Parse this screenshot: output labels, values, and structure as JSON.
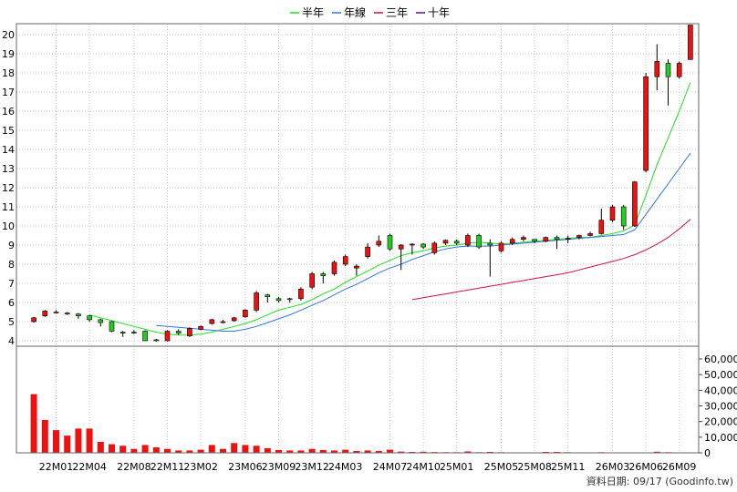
{
  "chart_data": {
    "type": "candlestick",
    "legend": [
      {
        "name": "半年",
        "color": "#22dd22"
      },
      {
        "name": "年線",
        "color": "#3377dd"
      },
      {
        "name": "三年",
        "color": "#cc1144"
      },
      {
        "name": "十年",
        "color": "#551199"
      }
    ],
    "legend_position": "top-center",
    "grid": true,
    "price_axis": {
      "min": 4,
      "max": 20,
      "ticks": [
        "4",
        "5",
        "6",
        "7",
        "8",
        "9",
        "10",
        "11",
        "12",
        "13",
        "14",
        "15",
        "16",
        "17",
        "18",
        "19",
        "20"
      ]
    },
    "volume_axis": {
      "min": 0,
      "max": 60000,
      "ticks": [
        "0",
        "10,000",
        "20,000",
        "30,000",
        "40,000",
        "50,000",
        "60,000"
      ]
    },
    "x_tick_labels": [
      {
        "label": "22M01",
        "index": 2
      },
      {
        "label": "22M04",
        "index": 5
      },
      {
        "label": "22M08",
        "index": 9
      },
      {
        "label": "22M11",
        "index": 12
      },
      {
        "label": "23M02",
        "index": 15
      },
      {
        "label": "23M06",
        "index": 19
      },
      {
        "label": "23M09",
        "index": 22
      },
      {
        "label": "23M12",
        "index": 25
      },
      {
        "label": "24M03",
        "index": 28
      },
      {
        "label": "24M07",
        "index": 32
      },
      {
        "label": "24M10",
        "index": 35
      },
      {
        "label": "25M01",
        "index": 38
      },
      {
        "label": "25M05",
        "index": 42
      },
      {
        "label": "25M08",
        "index": 45
      },
      {
        "label": "25M11",
        "index": 48
      },
      {
        "label": "26M03",
        "index": 52
      },
      {
        "label": "26M06",
        "index": 55
      },
      {
        "label": "26M09",
        "index": 58
      }
    ],
    "candles": [
      [
        5.0,
        5.2,
        4.95,
        5.25
      ],
      [
        5.3,
        5.55,
        5.25,
        5.6
      ],
      [
        5.5,
        5.5,
        5.45,
        5.6
      ],
      [
        5.45,
        5.4,
        5.35,
        5.5
      ],
      [
        5.4,
        5.3,
        5.15,
        5.45
      ],
      [
        5.3,
        5.1,
        5.0,
        5.35
      ],
      [
        5.1,
        4.95,
        4.75,
        5.15
      ],
      [
        5.0,
        4.5,
        4.45,
        5.05
      ],
      [
        4.45,
        4.4,
        4.2,
        4.5
      ],
      [
        4.45,
        4.42,
        4.35,
        4.55
      ],
      [
        4.5,
        4.0,
        4.0,
        4.55
      ],
      [
        4.05,
        4.0,
        3.95,
        4.1
      ],
      [
        4.0,
        4.5,
        3.95,
        4.55
      ],
      [
        4.5,
        4.4,
        4.3,
        4.6
      ],
      [
        4.25,
        4.65,
        4.2,
        4.7
      ],
      [
        4.6,
        4.75,
        4.55,
        4.8
      ],
      [
        4.9,
        5.1,
        4.85,
        5.15
      ],
      [
        4.95,
        5.0,
        4.9,
        5.1
      ],
      [
        5.05,
        5.2,
        5.0,
        5.25
      ],
      [
        5.25,
        5.6,
        5.2,
        5.65
      ],
      [
        5.6,
        6.5,
        5.5,
        6.6
      ],
      [
        6.4,
        6.3,
        6.0,
        6.45
      ],
      [
        6.2,
        6.1,
        6.0,
        6.3
      ],
      [
        6.2,
        6.15,
        6.0,
        6.25
      ],
      [
        6.2,
        6.7,
        6.1,
        6.8
      ],
      [
        6.8,
        7.5,
        6.7,
        7.6
      ],
      [
        7.5,
        7.4,
        7.0,
        7.6
      ],
      [
        7.5,
        8.1,
        7.4,
        8.2
      ],
      [
        8.0,
        8.4,
        7.9,
        8.5
      ],
      [
        7.8,
        7.9,
        7.4,
        8.0
      ],
      [
        8.4,
        8.9,
        8.3,
        9.1
      ],
      [
        9.0,
        9.2,
        8.9,
        9.5
      ],
      [
        9.5,
        8.8,
        8.7,
        9.6
      ],
      [
        8.8,
        9.0,
        7.7,
        9.05
      ],
      [
        9.0,
        9.05,
        8.5,
        9.1
      ],
      [
        9.05,
        8.9,
        8.8,
        9.1
      ],
      [
        8.6,
        9.1,
        8.5,
        9.2
      ],
      [
        9.1,
        9.25,
        9.0,
        9.3
      ],
      [
        9.2,
        9.1,
        9.0,
        9.3
      ],
      [
        9.0,
        9.5,
        8.9,
        9.6
      ],
      [
        9.5,
        8.9,
        8.8,
        9.6
      ],
      [
        9.1,
        9.0,
        7.35,
        9.3
      ],
      [
        8.7,
        9.1,
        8.6,
        9.2
      ],
      [
        9.1,
        9.3,
        9.0,
        9.4
      ],
      [
        9.3,
        9.4,
        9.2,
        9.5
      ],
      [
        9.3,
        9.2,
        9.1,
        9.3
      ],
      [
        9.2,
        9.4,
        9.15,
        9.45
      ],
      [
        9.4,
        9.3,
        8.8,
        9.5
      ],
      [
        9.3,
        9.35,
        9.1,
        9.5
      ],
      [
        9.4,
        9.5,
        9.3,
        9.55
      ],
      [
        9.5,
        9.6,
        9.45,
        9.7
      ],
      [
        9.6,
        10.3,
        9.55,
        10.9
      ],
      [
        10.3,
        11.0,
        10.2,
        11.1
      ],
      [
        11.0,
        10.0,
        9.8,
        11.1
      ],
      [
        10.0,
        12.3,
        9.95,
        12.35
      ],
      [
        12.9,
        17.8,
        12.8,
        18.0
      ],
      [
        17.8,
        18.6,
        17.1,
        19.5
      ],
      [
        18.5,
        17.8,
        16.3,
        18.7
      ],
      [
        17.8,
        18.5,
        17.7,
        18.6
      ],
      [
        18.7,
        20.5,
        18.7,
        20.5
      ]
    ],
    "volume": [
      37500,
      21000,
      14500,
      11000,
      15500,
      15500,
      7000,
      5500,
      4500,
      2500,
      5000,
      3500,
      2500,
      1500,
      1500,
      2000,
      5000,
      2500,
      6200,
      5000,
      4500,
      3000,
      1800,
      1500,
      1500,
      2500,
      1800,
      1500,
      2000,
      1200,
      1500,
      1200,
      2000,
      800,
      600,
      700,
      500,
      400,
      400,
      900,
      400,
      600,
      400,
      300,
      300,
      300,
      600,
      600,
      400,
      300,
      300,
      400,
      300,
      300,
      300,
      300,
      700,
      400,
      300,
      300
    ],
    "ma_half": [
      null,
      null,
      null,
      null,
      null,
      5.35,
      5.2,
      5.05,
      4.9,
      4.75,
      4.6,
      4.45,
      4.35,
      4.3,
      4.3,
      4.35,
      4.45,
      4.6,
      4.75,
      4.9,
      5.1,
      5.35,
      5.6,
      5.75,
      5.9,
      6.15,
      6.45,
      6.7,
      7.05,
      7.35,
      7.65,
      7.95,
      8.2,
      8.45,
      8.6,
      8.7,
      8.85,
      8.95,
      9.0,
      9.1,
      9.15,
      9.1,
      9.05,
      9.1,
      9.15,
      9.2,
      9.25,
      9.3,
      9.35,
      9.4,
      9.4,
      9.5,
      9.6,
      9.75,
      10.05,
      11.6,
      13.2,
      14.6,
      16.0,
      17.5
    ],
    "ma_year": [
      null,
      null,
      null,
      null,
      null,
      null,
      null,
      null,
      null,
      null,
      null,
      4.8,
      4.75,
      4.7,
      4.65,
      4.6,
      4.55,
      4.5,
      4.5,
      4.6,
      4.75,
      4.95,
      5.15,
      5.35,
      5.6,
      5.85,
      6.1,
      6.4,
      6.7,
      6.95,
      7.25,
      7.55,
      7.8,
      8.0,
      8.25,
      8.45,
      8.65,
      8.8,
      8.9,
      8.95,
      8.95,
      8.95,
      9.0,
      9.05,
      9.1,
      9.15,
      9.2,
      9.25,
      9.3,
      9.35,
      9.4,
      9.45,
      9.5,
      9.55,
      9.8,
      10.6,
      11.4,
      12.2,
      13.0,
      13.8
    ],
    "ma_3y": [
      null,
      null,
      null,
      null,
      null,
      null,
      null,
      null,
      null,
      null,
      null,
      null,
      null,
      null,
      null,
      null,
      null,
      null,
      null,
      null,
      null,
      null,
      null,
      null,
      null,
      null,
      null,
      null,
      null,
      null,
      null,
      null,
      null,
      null,
      6.15,
      6.25,
      6.35,
      6.45,
      6.55,
      6.65,
      6.75,
      6.85,
      6.95,
      7.05,
      7.15,
      7.25,
      7.35,
      7.45,
      7.55,
      7.7,
      7.85,
      8.0,
      8.15,
      8.3,
      8.5,
      8.75,
      9.05,
      9.4,
      9.85,
      10.35
    ],
    "ma_10y": [],
    "footer": "資料日期: 09/17  (Goodinfo.tw)"
  }
}
